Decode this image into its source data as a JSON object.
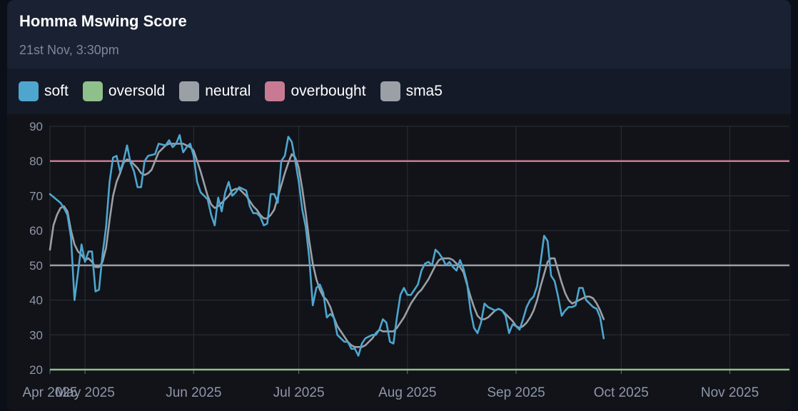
{
  "header": {
    "title": "Homma Mswing Score",
    "subtitle": "21st Nov, 3:30pm"
  },
  "legend": [
    {
      "label": "soft",
      "color": "#4ea6cf"
    },
    {
      "label": "oversold",
      "color": "#8fbf8a"
    },
    {
      "label": "neutral",
      "color": "#9aa0a6"
    },
    {
      "label": "overbought",
      "color": "#c97a93"
    },
    {
      "label": "sma5",
      "color": "#9aa0a6"
    }
  ],
  "chart_data": {
    "type": "line",
    "title": "Homma Mswing Score",
    "ylim": [
      20,
      90
    ],
    "y_ticks": [
      20,
      30,
      40,
      50,
      60,
      70,
      80,
      90
    ],
    "x_ticks": [
      {
        "label": "Apr 2025",
        "day": 0
      },
      {
        "label": "May 2025",
        "day": 10
      },
      {
        "label": "Jun 2025",
        "day": 41
      },
      {
        "label": "Jul 2025",
        "day": 71
      },
      {
        "label": "Aug 2025",
        "day": 102
      },
      {
        "label": "Sep 2025",
        "day": 133
      },
      {
        "label": "Oct 2025",
        "day": 163
      },
      {
        "label": "Nov 2025",
        "day": 194
      }
    ],
    "x_range_days": [
      0,
      211
    ],
    "grid": true,
    "reference_lines": [
      {
        "name": "oversold",
        "y": 20,
        "color": "#8fbf8a"
      },
      {
        "name": "neutral",
        "y": 50,
        "color": "#9aa0a6"
      },
      {
        "name": "overbought",
        "y": 80,
        "color": "#c97a93"
      }
    ],
    "series": [
      {
        "name": "soft",
        "color": "#4ea6cf",
        "points": [
          [
            0,
            70.5
          ],
          [
            3,
            68
          ],
          [
            4,
            66.5
          ],
          [
            5,
            64.5
          ],
          [
            6,
            58
          ],
          [
            7,
            40
          ],
          [
            8,
            48
          ],
          [
            9,
            56
          ],
          [
            10,
            51
          ],
          [
            11,
            54
          ],
          [
            12,
            54
          ],
          [
            13,
            42.5
          ],
          [
            14,
            43
          ],
          [
            15,
            53
          ],
          [
            16,
            61
          ],
          [
            17,
            74
          ],
          [
            18,
            81
          ],
          [
            19,
            81.5
          ],
          [
            20,
            77
          ],
          [
            21,
            80
          ],
          [
            22,
            84.5
          ],
          [
            23,
            79.5
          ],
          [
            24,
            77
          ],
          [
            25,
            72.5
          ],
          [
            26,
            72.5
          ],
          [
            27,
            80
          ],
          [
            28,
            81.5
          ],
          [
            30,
            82
          ],
          [
            31,
            85
          ],
          [
            33,
            84.5
          ],
          [
            34,
            86
          ],
          [
            35,
            84
          ],
          [
            36,
            85
          ],
          [
            37,
            87.5
          ],
          [
            38,
            82.5
          ],
          [
            39,
            84
          ],
          [
            40,
            85
          ],
          [
            41,
            81.5
          ],
          [
            42,
            74
          ],
          [
            43,
            71
          ],
          [
            44,
            70
          ],
          [
            45,
            69
          ],
          [
            46,
            64.5
          ],
          [
            47,
            61.5
          ],
          [
            48,
            69.5
          ],
          [
            49,
            65.5
          ],
          [
            50,
            71
          ],
          [
            51,
            74
          ],
          [
            52,
            70
          ],
          [
            53,
            71
          ],
          [
            54,
            72.5
          ],
          [
            55,
            72
          ],
          [
            56,
            71.5
          ],
          [
            57,
            67
          ],
          [
            58,
            65
          ],
          [
            59,
            65
          ],
          [
            60,
            64
          ],
          [
            61,
            61.5
          ],
          [
            62,
            62
          ],
          [
            63,
            70.5
          ],
          [
            64,
            70.5
          ],
          [
            65,
            68
          ],
          [
            66,
            80
          ],
          [
            67,
            81.5
          ],
          [
            68,
            87
          ],
          [
            69,
            85.5
          ],
          [
            70,
            80
          ],
          [
            71,
            74
          ],
          [
            72,
            66
          ],
          [
            73,
            61
          ],
          [
            74,
            52
          ],
          [
            75,
            38.5
          ],
          [
            76,
            43.5
          ],
          [
            77,
            44.5
          ],
          [
            78,
            42
          ],
          [
            79,
            35
          ],
          [
            80,
            36
          ],
          [
            81,
            35
          ],
          [
            82,
            30
          ],
          [
            83,
            29
          ],
          [
            84,
            28
          ],
          [
            85,
            28
          ],
          [
            86,
            26
          ],
          [
            87,
            26
          ],
          [
            88,
            24
          ],
          [
            89,
            27.5
          ],
          [
            90,
            29
          ],
          [
            91,
            29.5
          ],
          [
            92,
            30
          ],
          [
            93,
            30
          ],
          [
            94,
            31.5
          ],
          [
            95,
            34.5
          ],
          [
            96,
            33.5
          ],
          [
            97,
            28
          ],
          [
            98,
            27.5
          ],
          [
            99,
            35
          ],
          [
            100,
            41.5
          ],
          [
            101,
            43.5
          ],
          [
            102,
            41.5
          ],
          [
            103,
            41.5
          ],
          [
            104,
            43
          ],
          [
            105,
            44.5
          ],
          [
            106,
            48.5
          ],
          [
            107,
            50.5
          ],
          [
            108,
            51
          ],
          [
            109,
            50
          ],
          [
            110,
            54.5
          ],
          [
            111,
            53.5
          ],
          [
            112,
            52
          ],
          [
            113,
            50
          ],
          [
            114,
            51
          ],
          [
            115,
            49.5
          ],
          [
            116,
            48.5
          ],
          [
            117,
            51.5
          ],
          [
            118,
            49
          ],
          [
            119,
            45
          ],
          [
            120,
            37
          ],
          [
            121,
            32
          ],
          [
            122,
            30.5
          ],
          [
            123,
            33.5
          ],
          [
            124,
            39
          ],
          [
            125,
            38
          ],
          [
            126,
            37.5
          ],
          [
            127,
            37
          ],
          [
            128,
            37.5
          ],
          [
            129,
            37
          ],
          [
            130,
            35.5
          ],
          [
            131,
            30.5
          ],
          [
            132,
            33
          ],
          [
            133,
            32.5
          ],
          [
            134,
            31.5
          ],
          [
            135,
            34.5
          ],
          [
            136,
            38
          ],
          [
            137,
            40
          ],
          [
            138,
            41
          ],
          [
            139,
            44
          ],
          [
            140,
            51
          ],
          [
            141,
            58.5
          ],
          [
            142,
            57
          ],
          [
            143,
            47
          ],
          [
            144,
            45.5
          ],
          [
            145,
            41
          ],
          [
            146,
            35.5
          ],
          [
            147,
            37
          ],
          [
            148,
            38
          ],
          [
            149,
            38
          ],
          [
            150,
            38.5
          ],
          [
            151,
            43.5
          ],
          [
            152,
            43.5
          ],
          [
            153,
            40
          ],
          [
            154,
            39
          ],
          [
            155,
            38
          ],
          [
            156,
            37.5
          ],
          [
            157,
            35
          ],
          [
            158,
            29
          ]
        ]
      },
      {
        "name": "sma5",
        "color": "#9aa0a6",
        "points": [
          [
            0,
            54.5
          ],
          [
            1,
            61.5
          ],
          [
            2,
            64.5
          ],
          [
            3,
            66.5
          ],
          [
            4,
            67
          ],
          [
            5,
            65.5
          ],
          [
            6,
            60
          ],
          [
            7,
            56
          ],
          [
            8,
            54
          ],
          [
            9,
            53
          ],
          [
            10,
            51.5
          ],
          [
            11,
            52
          ],
          [
            12,
            51
          ],
          [
            13,
            49.5
          ],
          [
            14,
            49.5
          ],
          [
            15,
            51
          ],
          [
            16,
            55
          ],
          [
            17,
            63
          ],
          [
            18,
            70
          ],
          [
            19,
            74
          ],
          [
            20,
            76.5
          ],
          [
            21,
            79.5
          ],
          [
            22,
            80.5
          ],
          [
            23,
            80
          ],
          [
            24,
            79
          ],
          [
            25,
            78
          ],
          [
            26,
            76.5
          ],
          [
            27,
            76
          ],
          [
            28,
            76.5
          ],
          [
            29,
            77.5
          ],
          [
            30,
            80
          ],
          [
            31,
            82.5
          ],
          [
            32,
            83.5
          ],
          [
            33,
            84.5
          ],
          [
            34,
            85
          ],
          [
            35,
            85
          ],
          [
            36,
            85
          ],
          [
            37,
            85
          ],
          [
            38,
            85
          ],
          [
            39,
            84.5
          ],
          [
            40,
            84
          ],
          [
            41,
            83
          ],
          [
            42,
            80
          ],
          [
            43,
            77
          ],
          [
            44,
            73.5
          ],
          [
            45,
            70
          ],
          [
            46,
            67.5
          ],
          [
            47,
            66.5
          ],
          [
            48,
            67
          ],
          [
            49,
            68
          ],
          [
            50,
            69
          ],
          [
            51,
            70
          ],
          [
            52,
            71.5
          ],
          [
            53,
            72
          ],
          [
            54,
            72
          ],
          [
            55,
            71
          ],
          [
            56,
            70
          ],
          [
            57,
            68.5
          ],
          [
            58,
            67
          ],
          [
            59,
            66
          ],
          [
            60,
            64.5
          ],
          [
            61,
            63.5
          ],
          [
            62,
            63.5
          ],
          [
            63,
            64.5
          ],
          [
            64,
            66
          ],
          [
            65,
            69.5
          ],
          [
            66,
            73
          ],
          [
            67,
            76.5
          ],
          [
            68,
            79.5
          ],
          [
            69,
            82
          ],
          [
            70,
            81
          ],
          [
            71,
            78
          ],
          [
            72,
            72
          ],
          [
            73,
            65
          ],
          [
            74,
            57
          ],
          [
            75,
            50.5
          ],
          [
            76,
            46
          ],
          [
            77,
            43
          ],
          [
            78,
            41
          ],
          [
            79,
            40
          ],
          [
            80,
            38
          ],
          [
            81,
            35
          ],
          [
            82,
            32.5
          ],
          [
            83,
            31
          ],
          [
            84,
            29.5
          ],
          [
            85,
            28
          ],
          [
            86,
            27
          ],
          [
            87,
            26.5
          ],
          [
            88,
            26.5
          ],
          [
            89,
            26.5
          ],
          [
            90,
            27
          ],
          [
            91,
            28
          ],
          [
            92,
            29
          ],
          [
            93,
            30.5
          ],
          [
            94,
            31.5
          ],
          [
            95,
            31
          ],
          [
            96,
            31
          ],
          [
            97,
            31
          ],
          [
            98,
            31
          ],
          [
            99,
            32
          ],
          [
            100,
            33.5
          ],
          [
            101,
            35
          ],
          [
            102,
            37
          ],
          [
            103,
            39
          ],
          [
            104,
            40.5
          ],
          [
            105,
            42
          ],
          [
            106,
            43
          ],
          [
            107,
            44.5
          ],
          [
            108,
            46
          ],
          [
            109,
            48
          ],
          [
            110,
            50
          ],
          [
            111,
            51.5
          ],
          [
            112,
            52
          ],
          [
            113,
            52
          ],
          [
            114,
            52
          ],
          [
            115,
            51.5
          ],
          [
            116,
            50.5
          ],
          [
            117,
            49.5
          ],
          [
            118,
            48
          ],
          [
            119,
            44.5
          ],
          [
            120,
            41
          ],
          [
            121,
            38
          ],
          [
            122,
            35.5
          ],
          [
            123,
            34.5
          ],
          [
            124,
            34.5
          ],
          [
            125,
            35
          ],
          [
            126,
            36
          ],
          [
            127,
            37
          ],
          [
            128,
            37.5
          ],
          [
            129,
            37
          ],
          [
            130,
            36
          ],
          [
            131,
            35
          ],
          [
            132,
            34
          ],
          [
            133,
            32.5
          ],
          [
            134,
            32
          ],
          [
            135,
            32.5
          ],
          [
            136,
            33.5
          ],
          [
            137,
            35
          ],
          [
            138,
            37
          ],
          [
            139,
            40
          ],
          [
            140,
            44
          ],
          [
            141,
            47.5
          ],
          [
            142,
            51
          ],
          [
            143,
            52
          ],
          [
            144,
            52
          ],
          [
            145,
            48.5
          ],
          [
            146,
            45
          ],
          [
            147,
            42
          ],
          [
            148,
            40
          ],
          [
            149,
            39
          ],
          [
            150,
            39.5
          ],
          [
            151,
            40
          ],
          [
            152,
            40.5
          ],
          [
            153,
            41
          ],
          [
            154,
            41
          ],
          [
            155,
            40.5
          ],
          [
            156,
            39
          ],
          [
            157,
            37
          ],
          [
            158,
            34.5
          ]
        ]
      }
    ]
  }
}
